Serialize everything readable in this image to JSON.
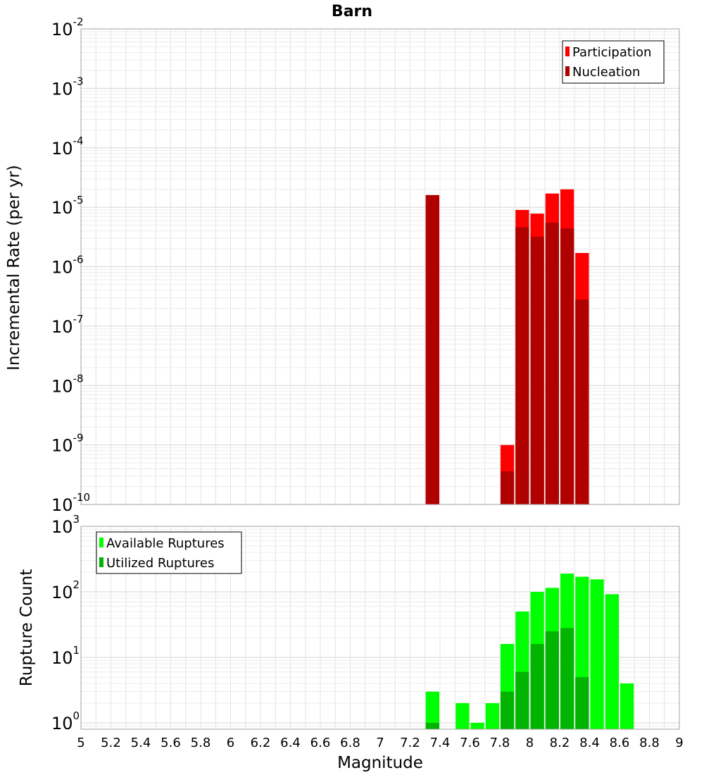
{
  "chart_data": [
    {
      "type": "bar",
      "panel": "top",
      "title": "Barn",
      "ylabel": "Incremental Rate (per yr)",
      "xlabel": "",
      "xlim": [
        5,
        9
      ],
      "ylim": [
        1e-10,
        0.01
      ],
      "yscale": "log",
      "grid": true,
      "legend_position": "top-right",
      "bin_width": 0.1,
      "series": [
        {
          "name": "Participation",
          "color": "#ff0000",
          "x": [
            7.35,
            7.85,
            7.95,
            8.05,
            8.15,
            8.25,
            8.35
          ],
          "values": [
            1.6e-05,
            1e-09,
            9e-06,
            7.8e-06,
            1.7e-05,
            2e-05,
            1.7e-06
          ]
        },
        {
          "name": "Nucleation",
          "color": "#b00000",
          "x": [
            7.35,
            7.85,
            7.95,
            8.05,
            8.15,
            8.25,
            8.35
          ],
          "values": [
            1.6e-05,
            3.6e-10,
            4.6e-06,
            3.2e-06,
            5.5e-06,
            4.4e-06,
            2.8e-07
          ]
        }
      ],
      "yticks": [
        {
          "base": "10",
          "exp": "-2"
        },
        {
          "base": "10",
          "exp": "-3"
        },
        {
          "base": "10",
          "exp": "-4"
        },
        {
          "base": "10",
          "exp": "-5"
        },
        {
          "base": "10",
          "exp": "-6"
        },
        {
          "base": "10",
          "exp": "-7"
        },
        {
          "base": "10",
          "exp": "-8"
        },
        {
          "base": "10",
          "exp": "-9"
        },
        {
          "base": "10",
          "exp": "-10"
        }
      ]
    },
    {
      "type": "bar",
      "panel": "bottom",
      "title": "",
      "ylabel": "Rupture Count",
      "xlabel": "Magnitude",
      "xlim": [
        5,
        9
      ],
      "ylim": [
        0.8,
        1000
      ],
      "yscale": "log",
      "grid": true,
      "legend_position": "top-left",
      "bin_width": 0.1,
      "series": [
        {
          "name": "Available Ruptures",
          "color": "#00ff00",
          "x": [
            7.35,
            7.55,
            7.65,
            7.75,
            7.85,
            7.95,
            8.05,
            8.15,
            8.25,
            8.35,
            8.45,
            8.55,
            8.65
          ],
          "values": [
            3,
            2,
            1,
            2,
            16,
            50,
            100,
            115,
            190,
            170,
            155,
            92,
            4
          ]
        },
        {
          "name": "Utilized Ruptures",
          "color": "#00b400",
          "x": [
            7.35,
            7.85,
            7.95,
            8.05,
            8.15,
            8.25,
            8.35
          ],
          "values": [
            1,
            3,
            6,
            16,
            25,
            28,
            5
          ]
        }
      ],
      "yticks": [
        {
          "base": "10",
          "exp": "3"
        },
        {
          "base": "10",
          "exp": "2"
        },
        {
          "base": "10",
          "exp": "1"
        },
        {
          "base": "10",
          "exp": "0"
        }
      ],
      "xticks": [
        "5",
        "5.2",
        "5.4",
        "5.6",
        "5.8",
        "6",
        "6.2",
        "6.4",
        "6.6",
        "6.8",
        "7",
        "7.2",
        "7.4",
        "7.6",
        "7.8",
        "8",
        "8.2",
        "8.4",
        "8.6",
        "8.8",
        "9"
      ]
    }
  ]
}
